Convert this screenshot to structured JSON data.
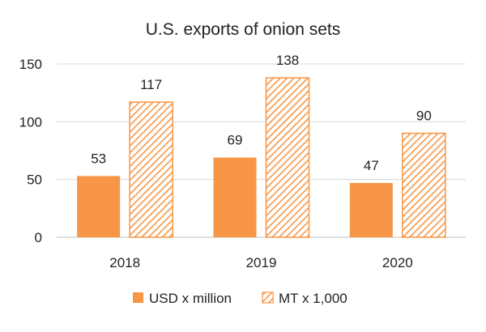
{
  "chart_data": {
    "type": "bar",
    "title": "U.S. exports of onion sets",
    "categories": [
      "2018",
      "2019",
      "2020"
    ],
    "series": [
      {
        "name": "USD x million",
        "values": [
          53,
          69,
          47
        ],
        "color": "#f79646",
        "pattern": "solid"
      },
      {
        "name": "MT x 1,000",
        "values": [
          117,
          138,
          90
        ],
        "color": "#f79646",
        "pattern": "diagonal-hatch"
      }
    ],
    "ylim": [
      0,
      150
    ],
    "yticks": [
      0,
      50,
      100,
      150
    ],
    "grid": true,
    "legend_position": "bottom"
  }
}
